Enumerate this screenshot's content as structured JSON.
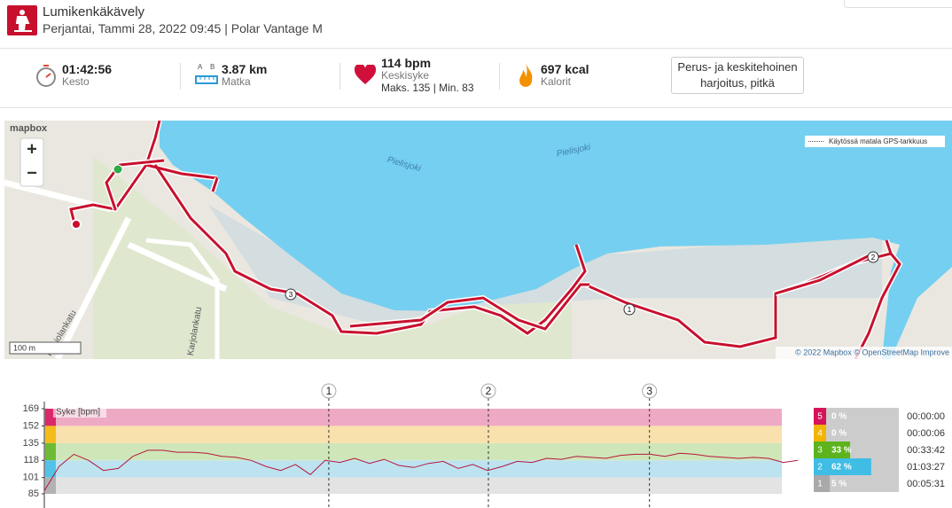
{
  "header": {
    "title": "Lumikenkäkävely",
    "subtitle": "Perjantai, Tammi 28, 2022 09:45 | Polar Vantage M"
  },
  "summary": {
    "duration": {
      "value": "01:42:56",
      "label": "Kesto"
    },
    "distance": {
      "value": "3.87 km",
      "label": "Matka"
    },
    "heart_rate": {
      "value": "114 bpm",
      "label": "Keskisyke",
      "range": "Maks. 135 | Min. 83"
    },
    "calories": {
      "value": "697 kcal",
      "label": "Kalorit"
    },
    "benefit": "Perus- ja keskitehoinen harjoitus, pitkä"
  },
  "map": {
    "logo": "mapbox",
    "zoom_in": "+",
    "zoom_out": "−",
    "legend": "Käytössä matala GPS-tarkkuus",
    "labels": [
      "Pielisjoki",
      "Pielisjoki",
      "Pohjolankatu",
      "Karjolankatu"
    ],
    "scale": "100 m",
    "attribution": "© 2022 Mapbox © OpenStreetMap Improve"
  },
  "chart_data": {
    "type": "line",
    "series_label": "Syke [bpm]",
    "x": [
      0,
      2,
      4,
      6,
      8,
      10,
      12,
      14,
      16,
      18,
      20,
      22,
      24,
      26,
      28,
      30,
      32,
      34,
      36,
      38,
      40,
      42,
      44,
      46,
      48,
      50,
      52,
      54,
      56,
      58,
      60,
      62,
      64,
      66,
      68,
      70,
      72,
      74,
      76,
      78,
      80,
      82,
      84,
      86,
      88,
      90,
      92,
      94,
      96,
      98,
      100,
      102
    ],
    "values": [
      88,
      112,
      124,
      118,
      108,
      110,
      122,
      128,
      128,
      126,
      126,
      125,
      122,
      121,
      118,
      112,
      108,
      114,
      104,
      118,
      116,
      120,
      115,
      119,
      113,
      111,
      115,
      117,
      110,
      114,
      108,
      112,
      117,
      116,
      120,
      119,
      122,
      121,
      120,
      123,
      124,
      124,
      122,
      125,
      124,
      122,
      121,
      120,
      121,
      120,
      116,
      118
    ],
    "color": "#b5173c",
    "xlim": [
      0,
      102.93
    ],
    "ylim": [
      85,
      169
    ],
    "yticks": [
      85,
      101,
      118,
      135,
      152,
      169
    ],
    "laps": [
      {
        "label": "1",
        "x": 38.5
      },
      {
        "label": "2",
        "x": 60.1
      },
      {
        "label": "3",
        "x": 81.9
      }
    ],
    "zones": [
      {
        "zone": "5",
        "from": 152,
        "to": 169,
        "percent": 0,
        "percent_label": "0 %",
        "time": "00:00:00",
        "color": "#d6135a",
        "band": "#eeaac4"
      },
      {
        "zone": "4",
        "from": 135,
        "to": 152,
        "percent": 0,
        "percent_label": "0 %",
        "time": "00:00:06",
        "color": "#f3b400",
        "band": "#f9e1ad"
      },
      {
        "zone": "3",
        "from": 118,
        "to": 135,
        "percent": 33,
        "percent_label": "33 %",
        "time": "00:33:42",
        "color": "#5cb31c",
        "band": "#cfe6b9"
      },
      {
        "zone": "2",
        "from": 101,
        "to": 118,
        "percent": 62,
        "percent_label": "62 %",
        "time": "01:03:27",
        "color": "#3fbde5",
        "band": "#bde3f1"
      },
      {
        "zone": "1",
        "from": 85,
        "to": 101,
        "percent": 5,
        "percent_label": "5 %",
        "time": "00:05:31",
        "color": "#a9a9a9",
        "band": "#e3e3e3"
      }
    ]
  }
}
